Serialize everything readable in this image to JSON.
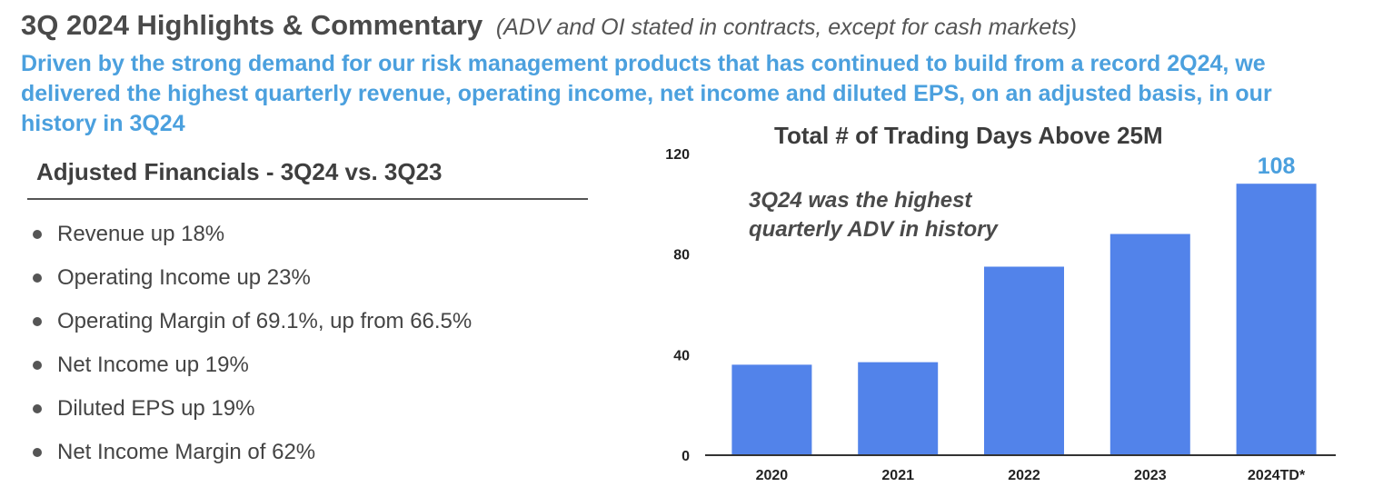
{
  "header": {
    "title": "3Q 2024 Highlights & Commentary",
    "subtitle": "(ADV and OI stated in contracts, except for cash markets)"
  },
  "lead": {
    "text": "Driven by the strong demand for our risk management products that has continued to build from a record 2Q24, we delivered the highest quarterly revenue, operating income, net income and diluted EPS, on an adjusted basis, in our history in 3Q24"
  },
  "financials": {
    "heading": "Adjusted Financials - 3Q24 vs. 3Q23",
    "items": [
      "Revenue up 18%",
      "Operating Income up 23%",
      "Operating Margin of 69.1%, up from 66.5%",
      "Net Income up 19%",
      "Diluted EPS up 19%",
      "Net Income Margin of 62%"
    ]
  },
  "chart_data": {
    "type": "bar",
    "title": "Total # of Trading Days Above 25M",
    "annotation_line1": "3Q24 was the highest",
    "annotation_line2": "quarterly ADV in history",
    "categories": [
      "2020",
      "2021",
      "2022",
      "2023",
      "2024TD*"
    ],
    "values": [
      36,
      37,
      75,
      88,
      108
    ],
    "data_labels": [
      "",
      "",
      "",
      "",
      "108"
    ],
    "yticks": [
      0,
      40,
      80,
      120
    ],
    "ylim": [
      0,
      120
    ],
    "xlabel": "",
    "ylabel": "",
    "grid": false,
    "bar_color": "#5283ea",
    "label_color": "#4ba0de"
  }
}
